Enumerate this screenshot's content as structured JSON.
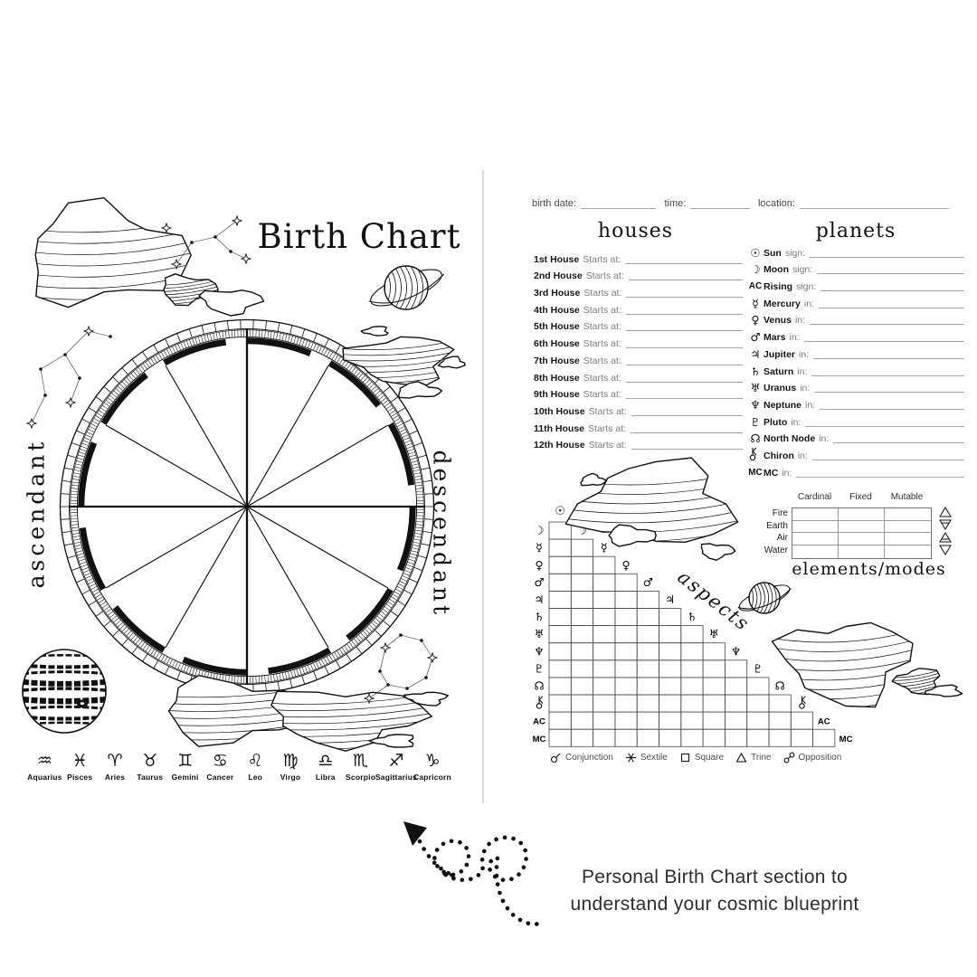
{
  "left_page": {
    "title": "Birth Chart",
    "wheel": {
      "ascendant_label": "ascendant",
      "descendant_label": "descendant",
      "segments": 12
    },
    "zodiac_signs": [
      {
        "symbol": "♒",
        "name": "Aquarius"
      },
      {
        "symbol": "♓",
        "name": "Pisces"
      },
      {
        "symbol": "♈",
        "name": "Aries"
      },
      {
        "symbol": "♉",
        "name": "Taurus"
      },
      {
        "symbol": "♊",
        "name": "Gemini"
      },
      {
        "symbol": "♋",
        "name": "Cancer"
      },
      {
        "symbol": "♌",
        "name": "Leo"
      },
      {
        "symbol": "♍",
        "name": "Virgo"
      },
      {
        "symbol": "♎",
        "name": "Libra"
      },
      {
        "symbol": "♏",
        "name": "Scorpio"
      },
      {
        "symbol": "♐",
        "name": "Sagittarius"
      },
      {
        "symbol": "♑",
        "name": "Capricorn"
      }
    ]
  },
  "right_page": {
    "top_fields": [
      {
        "label": "birth date:",
        "line_width": 84
      },
      {
        "label": "time:",
        "line_width": 66
      },
      {
        "label": "location:",
        "line_width": 166
      }
    ],
    "houses": {
      "title": "houses",
      "suffix": "Starts at:",
      "rows": [
        {
          "name": "1st House"
        },
        {
          "name": "2nd House"
        },
        {
          "name": "3rd House"
        },
        {
          "name": "4th House"
        },
        {
          "name": "5th House"
        },
        {
          "name": "6th House"
        },
        {
          "name": "7th House"
        },
        {
          "name": "8th House"
        },
        {
          "name": "9th House"
        },
        {
          "name": "10th House"
        },
        {
          "name": "11th House"
        },
        {
          "name": "12th House"
        }
      ]
    },
    "planets": {
      "title": "planets",
      "rows": [
        {
          "glyph": "☉",
          "icon": "sun-icon",
          "name": "Sun",
          "suffix": "sign:"
        },
        {
          "glyph": "☽",
          "icon": "moon-icon",
          "name": "Moon",
          "suffix": "sign:"
        },
        {
          "glyph": "AC",
          "icon": "ascendant-label",
          "name": "Rising",
          "suffix": "sign:"
        },
        {
          "glyph": "☿",
          "icon": "mercury-icon",
          "name": "Mercury",
          "suffix": "in:"
        },
        {
          "glyph": "♀",
          "icon": "venus-icon",
          "name": "Venus",
          "suffix": "in:"
        },
        {
          "glyph": "♂",
          "icon": "mars-icon",
          "name": "Mars",
          "suffix": "in:"
        },
        {
          "glyph": "♃",
          "icon": "jupiter-icon",
          "name": "Jupiter",
          "suffix": "in:"
        },
        {
          "glyph": "♄",
          "icon": "saturn-icon",
          "name": "Saturn",
          "suffix": "in:"
        },
        {
          "glyph": "♅",
          "icon": "uranus-icon",
          "name": "Uranus",
          "suffix": "in:"
        },
        {
          "glyph": "♆",
          "icon": "neptune-icon",
          "name": "Neptune",
          "suffix": "in:"
        },
        {
          "glyph": "♇",
          "icon": "pluto-icon",
          "name": "Pluto",
          "suffix": "in:"
        },
        {
          "glyph": "☊",
          "icon": "north-node-icon",
          "name": "North Node",
          "suffix": "in:"
        },
        {
          "glyph": "",
          "icon": "chiron-icon",
          "name": "Chiron",
          "suffix": "in:"
        },
        {
          "glyph": "MC",
          "icon": "midheaven-label",
          "name": "MC",
          "suffix": "in:"
        }
      ]
    },
    "aspects": {
      "title": "aspects",
      "top_symbol": {
        "glyph": "☉",
        "icon": "sun-icon"
      },
      "rows": [
        {
          "glyph": "☽",
          "icon": "moon-icon"
        },
        {
          "glyph": "☿",
          "icon": "mercury-icon"
        },
        {
          "glyph": "♀",
          "icon": "venus-icon"
        },
        {
          "glyph": "♂",
          "icon": "mars-icon"
        },
        {
          "glyph": "♃",
          "icon": "jupiter-icon"
        },
        {
          "glyph": "♄",
          "icon": "saturn-icon"
        },
        {
          "glyph": "♅",
          "icon": "uranus-icon"
        },
        {
          "glyph": "♆",
          "icon": "neptune-icon"
        },
        {
          "glyph": "♇",
          "icon": "pluto-icon"
        },
        {
          "glyph": "☊",
          "icon": "north-node-icon"
        },
        {
          "glyph": "",
          "icon": "chiron-icon"
        },
        {
          "glyph": "AC",
          "icon": "ascendant-label"
        },
        {
          "glyph": "MC",
          "icon": "midheaven-label"
        }
      ],
      "legend": [
        {
          "icon": "conjunction-icon",
          "label": "Conjunction"
        },
        {
          "icon": "sextile-icon",
          "label": "Sextile"
        },
        {
          "icon": "square-icon",
          "label": "Square"
        },
        {
          "icon": "trine-icon",
          "label": "Trine"
        },
        {
          "icon": "opposition-icon",
          "label": "Opposition"
        }
      ]
    },
    "elements_modes": {
      "title": "elements/modes",
      "columns": [
        "Cardinal",
        "Fixed",
        "Mutable"
      ],
      "rows": [
        "Fire",
        "Earth",
        "Air",
        "Water"
      ],
      "row_icons": [
        "fire-triangle-icon",
        "earth-triangle-icon",
        "air-triangle-icon",
        "water-triangle-icon"
      ]
    }
  },
  "caption": {
    "line1": "Personal Birth Chart section to",
    "line2": "understand your cosmic blueprint"
  },
  "colors": {
    "ink": "#111111",
    "muted": "#7d7d7d",
    "rule": "#a5a5a5",
    "divider": "#dcdcdc"
  }
}
